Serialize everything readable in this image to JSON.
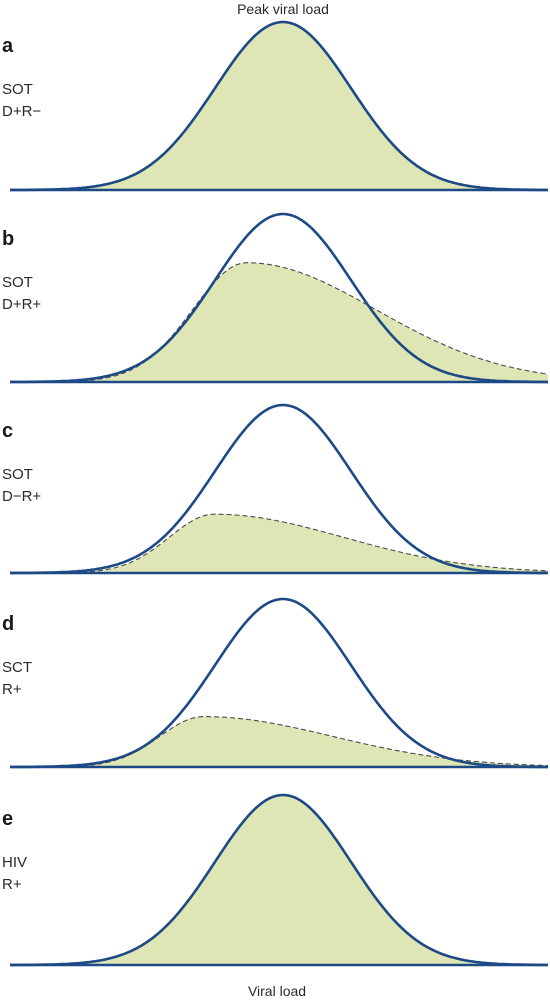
{
  "figure": {
    "top_title": "Peak viral load",
    "bottom_title": "Viral load",
    "colors": {
      "curve": "#1d4a86",
      "fill": "#dfe6b5",
      "dashed": "#4a4a4a",
      "baseline": "#1d4a86"
    },
    "panels": [
      {
        "letter": "a",
        "lines": [
          "SOT",
          "D+R−"
        ],
        "fill_type": "full",
        "inner_peak": 1.0,
        "inner_peak_x": 0.5
      },
      {
        "letter": "b",
        "lines": [
          "SOT",
          "D+R+"
        ],
        "fill_type": "partial",
        "inner_peak": 0.71,
        "inner_peak_x": 0.44
      },
      {
        "letter": "c",
        "lines": [
          "SOT",
          "D−R+"
        ],
        "fill_type": "partial",
        "inner_peak": 0.35,
        "inner_peak_x": 0.38
      },
      {
        "letter": "d",
        "lines": [
          "SCT",
          "R+"
        ],
        "fill_type": "partial",
        "inner_peak": 0.3,
        "inner_peak_x": 0.36
      },
      {
        "letter": "e",
        "lines": [
          "HIV",
          "R+"
        ],
        "fill_type": "full",
        "inner_peak": 1.0,
        "inner_peak_x": 0.5
      }
    ]
  }
}
